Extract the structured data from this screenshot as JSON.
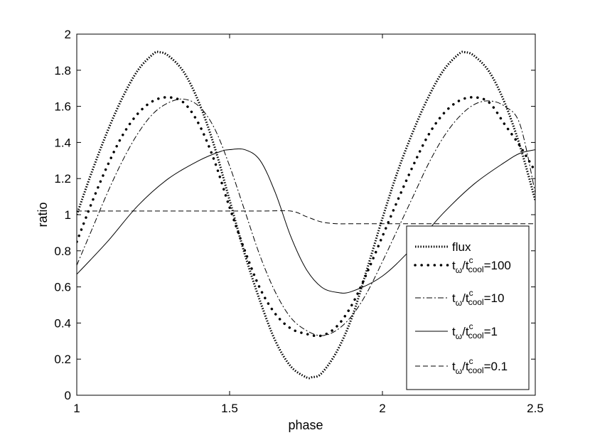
{
  "chart_data": {
    "type": "line",
    "title": "",
    "xlabel": "phase",
    "ylabel": "ratio",
    "xlim": [
      1,
      2.5
    ],
    "ylim": [
      0,
      2
    ],
    "xticks": [
      "1",
      "1.5",
      "2",
      "2.5"
    ],
    "yticks": [
      "0",
      "0.2",
      "0.4",
      "0.6",
      "0.8",
      "1",
      "1.2",
      "1.4",
      "1.6",
      "1.8",
      "2"
    ],
    "grid": false,
    "legend_position": "bottom-right",
    "series": [
      {
        "name": "flux",
        "style": "dotted-dense",
        "x": [
          1.0,
          1.05,
          1.1,
          1.15,
          1.2,
          1.25,
          1.27,
          1.3,
          1.35,
          1.4,
          1.45,
          1.5,
          1.55,
          1.6,
          1.65,
          1.7,
          1.75,
          1.77,
          1.8,
          1.85,
          1.9,
          1.95,
          2.0,
          2.05,
          2.1,
          2.15,
          2.2,
          2.25,
          2.27,
          2.3,
          2.35,
          2.4,
          2.45,
          2.5
        ],
        "y": [
          1.0,
          1.24,
          1.46,
          1.65,
          1.8,
          1.89,
          1.9,
          1.88,
          1.79,
          1.62,
          1.38,
          1.08,
          0.78,
          0.52,
          0.3,
          0.16,
          0.1,
          0.1,
          0.12,
          0.24,
          0.43,
          0.7,
          0.98,
          1.24,
          1.46,
          1.65,
          1.8,
          1.89,
          1.9,
          1.88,
          1.79,
          1.62,
          1.38,
          1.08
        ]
      },
      {
        "name": "t_ω/t^c_cool=100",
        "style": "dots",
        "x": [
          1.0,
          1.05,
          1.1,
          1.15,
          1.2,
          1.25,
          1.3,
          1.35,
          1.4,
          1.45,
          1.5,
          1.55,
          1.6,
          1.65,
          1.7,
          1.75,
          1.8,
          1.85,
          1.9,
          1.95,
          2.0,
          2.05,
          2.1,
          2.15,
          2.2,
          2.25,
          2.3,
          2.35,
          2.4,
          2.45,
          2.5
        ],
        "y": [
          0.85,
          1.07,
          1.27,
          1.44,
          1.56,
          1.63,
          1.65,
          1.62,
          1.5,
          1.3,
          1.04,
          0.8,
          0.59,
          0.45,
          0.37,
          0.34,
          0.33,
          0.38,
          0.5,
          0.68,
          0.88,
          1.08,
          1.27,
          1.44,
          1.56,
          1.63,
          1.65,
          1.62,
          1.5,
          1.38,
          1.24
        ]
      },
      {
        "name": "t_ω/t^c_cool=10",
        "style": "dashdot",
        "x": [
          1.0,
          1.05,
          1.1,
          1.15,
          1.2,
          1.25,
          1.3,
          1.35,
          1.4,
          1.45,
          1.5,
          1.55,
          1.6,
          1.65,
          1.7,
          1.75,
          1.8,
          1.85,
          1.9,
          1.95,
          2.0,
          2.05,
          2.1,
          2.15,
          2.2,
          2.25,
          2.3,
          2.35,
          2.4,
          2.45,
          2.5
        ],
        "y": [
          0.72,
          0.92,
          1.12,
          1.3,
          1.45,
          1.56,
          1.62,
          1.64,
          1.6,
          1.48,
          1.27,
          1.02,
          0.77,
          0.57,
          0.43,
          0.36,
          0.33,
          0.36,
          0.44,
          0.57,
          0.74,
          0.92,
          1.1,
          1.28,
          1.43,
          1.54,
          1.61,
          1.63,
          1.6,
          1.5,
          1.12
        ]
      },
      {
        "name": "t_ω/t^c_cool=1",
        "style": "solid",
        "x": [
          1.0,
          1.1,
          1.2,
          1.3,
          1.4,
          1.47,
          1.5,
          1.55,
          1.6,
          1.65,
          1.7,
          1.75,
          1.8,
          1.85,
          1.9,
          2.0,
          2.1,
          2.2,
          2.3,
          2.4,
          2.45,
          2.5
        ],
        "y": [
          0.67,
          0.85,
          1.05,
          1.2,
          1.3,
          1.35,
          1.36,
          1.36,
          1.3,
          1.12,
          0.88,
          0.7,
          0.6,
          0.57,
          0.575,
          0.66,
          0.82,
          1.01,
          1.17,
          1.29,
          1.34,
          1.36
        ]
      },
      {
        "name": "t_ω/t^c_cool=0.1",
        "style": "dashed",
        "x": [
          1.0,
          1.2,
          1.4,
          1.6,
          1.7,
          1.75,
          1.8,
          1.85,
          1.9,
          2.0,
          2.2,
          2.4,
          2.5
        ],
        "y": [
          1.02,
          1.02,
          1.02,
          1.02,
          1.02,
          0.99,
          0.96,
          0.95,
          0.95,
          0.95,
          0.95,
          0.95,
          0.95
        ]
      }
    ],
    "legend": [
      {
        "main": "flux"
      },
      {
        "t": "t",
        "w": "ω",
        "slash": "/t",
        "c": "c",
        "cool": "cool",
        "val": "=100"
      },
      {
        "t": "t",
        "w": "ω",
        "slash": "/t",
        "c": "c",
        "cool": "cool",
        "val": "=10"
      },
      {
        "t": "t",
        "w": "ω",
        "slash": "/t",
        "c": "c",
        "cool": "cool",
        "val": "=1"
      },
      {
        "t": "t",
        "w": "ω",
        "slash": "/t",
        "c": "c",
        "cool": "cool",
        "val": "=0.1"
      }
    ]
  }
}
